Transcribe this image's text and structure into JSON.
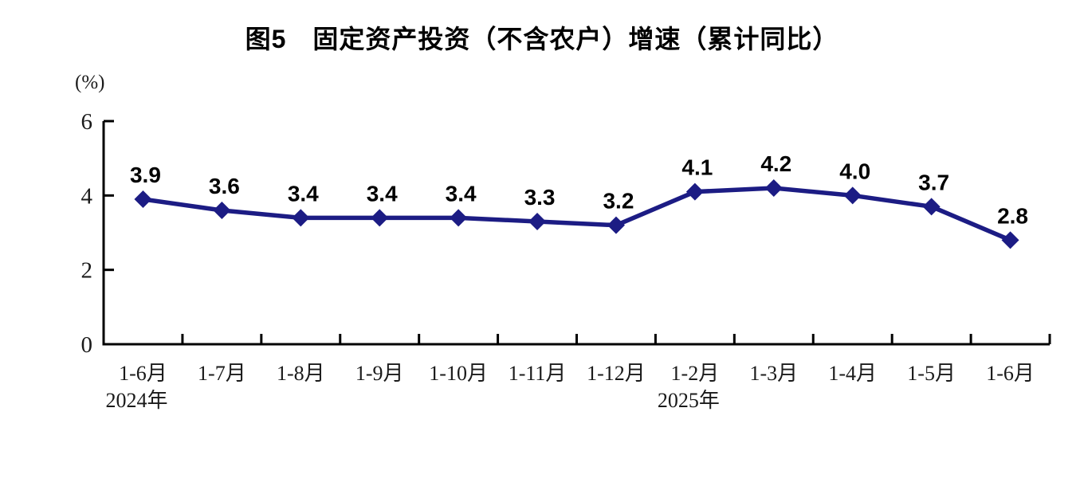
{
  "title": "图5　固定资产投资（不含农户）增速（累计同比）",
  "chart_data": {
    "type": "line",
    "title": "图5　固定资产投资（不含农户）增速（累计同比）",
    "unit_label": "(%)",
    "categories": [
      "1-6月",
      "1-7月",
      "1-8月",
      "1-9月",
      "1-10月",
      "1-11月",
      "1-12月",
      "1-2月",
      "1-3月",
      "1-4月",
      "1-5月",
      "1-6月"
    ],
    "year_labels": [
      {
        "index": 0,
        "label": "2024年"
      },
      {
        "index": 7,
        "label": "2025年"
      }
    ],
    "values": [
      3.9,
      3.6,
      3.4,
      3.4,
      3.4,
      3.3,
      3.2,
      4.1,
      4.2,
      4.0,
      3.7,
      2.8
    ],
    "data_labels": [
      "3.9",
      "3.6",
      "3.4",
      "3.4",
      "3.4",
      "3.3",
      "3.2",
      "4.1",
      "4.2",
      "4.0",
      "3.7",
      "2.8"
    ],
    "y_ticks": [
      0,
      2,
      4,
      6
    ],
    "ylim": [
      0,
      6
    ],
    "xlabel": "",
    "ylabel": "(%)",
    "grid": false,
    "legend": "none",
    "marker": "diamond",
    "line_color": "#1c1c84",
    "axis_color": "#000000",
    "label_color": "#000000"
  }
}
